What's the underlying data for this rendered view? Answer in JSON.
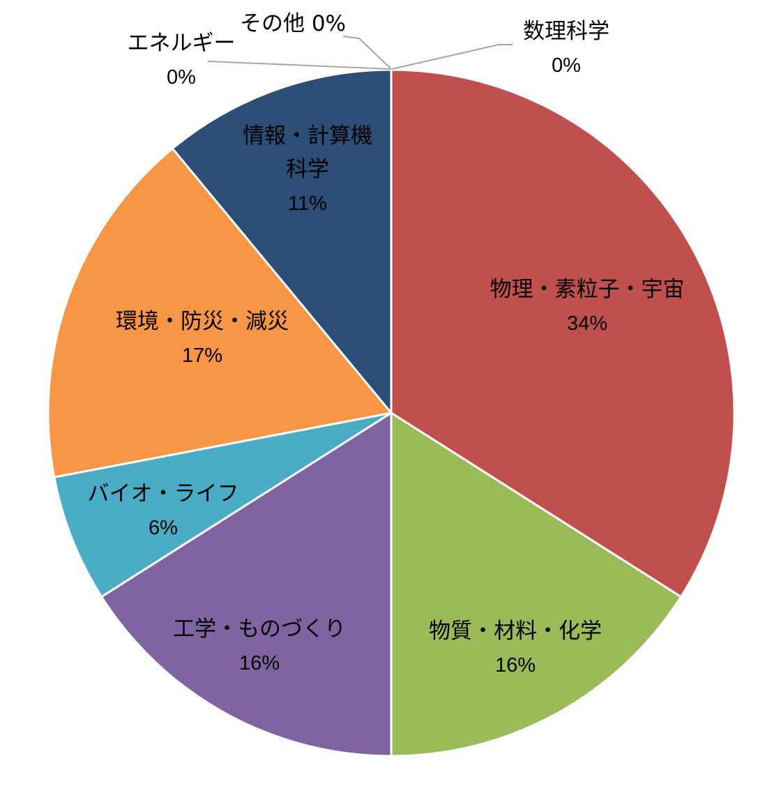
{
  "chart_data": {
    "type": "pie",
    "title": "",
    "slices": [
      {
        "label": "物理・素粒子・宇宙",
        "label_lines": [
          "物理・素粒子・宇宙"
        ],
        "value": 34,
        "value_label": "34%",
        "color": "#c0504d"
      },
      {
        "label": "物質・材料・化学",
        "label_lines": [
          "物質・材料・化学"
        ],
        "value": 16,
        "value_label": "16%",
        "color": "#9bbb59"
      },
      {
        "label": "工学・ものづくり",
        "label_lines": [
          "工学・ものづくり"
        ],
        "value": 16,
        "value_label": "16%",
        "color": "#8064a2"
      },
      {
        "label": "バイオ・ライフ",
        "label_lines": [
          "バイオ・ライフ"
        ],
        "value": 6,
        "value_label": "6%",
        "color": "#4bacc6"
      },
      {
        "label": "環境・防災・減災",
        "label_lines": [
          "環境・防災・減災"
        ],
        "value": 17,
        "value_label": "17%",
        "color": "#f79646"
      },
      {
        "label": "情報・計算機科学",
        "label_lines": [
          "情報・計算機",
          "科学"
        ],
        "value": 11,
        "value_label": "11%",
        "color": "#2c4d75"
      },
      {
        "label": "エネルギー",
        "label_lines": [
          "エネルギー"
        ],
        "value": 0,
        "value_label": "0%",
        "color": "#1f497d"
      },
      {
        "label": "その他",
        "label_lines": [
          "その他 0%"
        ],
        "value": 0,
        "value_label": "",
        "color": "#4f81bd"
      },
      {
        "label": "数理科学",
        "label_lines": [
          "数理科学"
        ],
        "value": 0,
        "value_label": "0%",
        "color": "#4f81bd"
      }
    ]
  }
}
